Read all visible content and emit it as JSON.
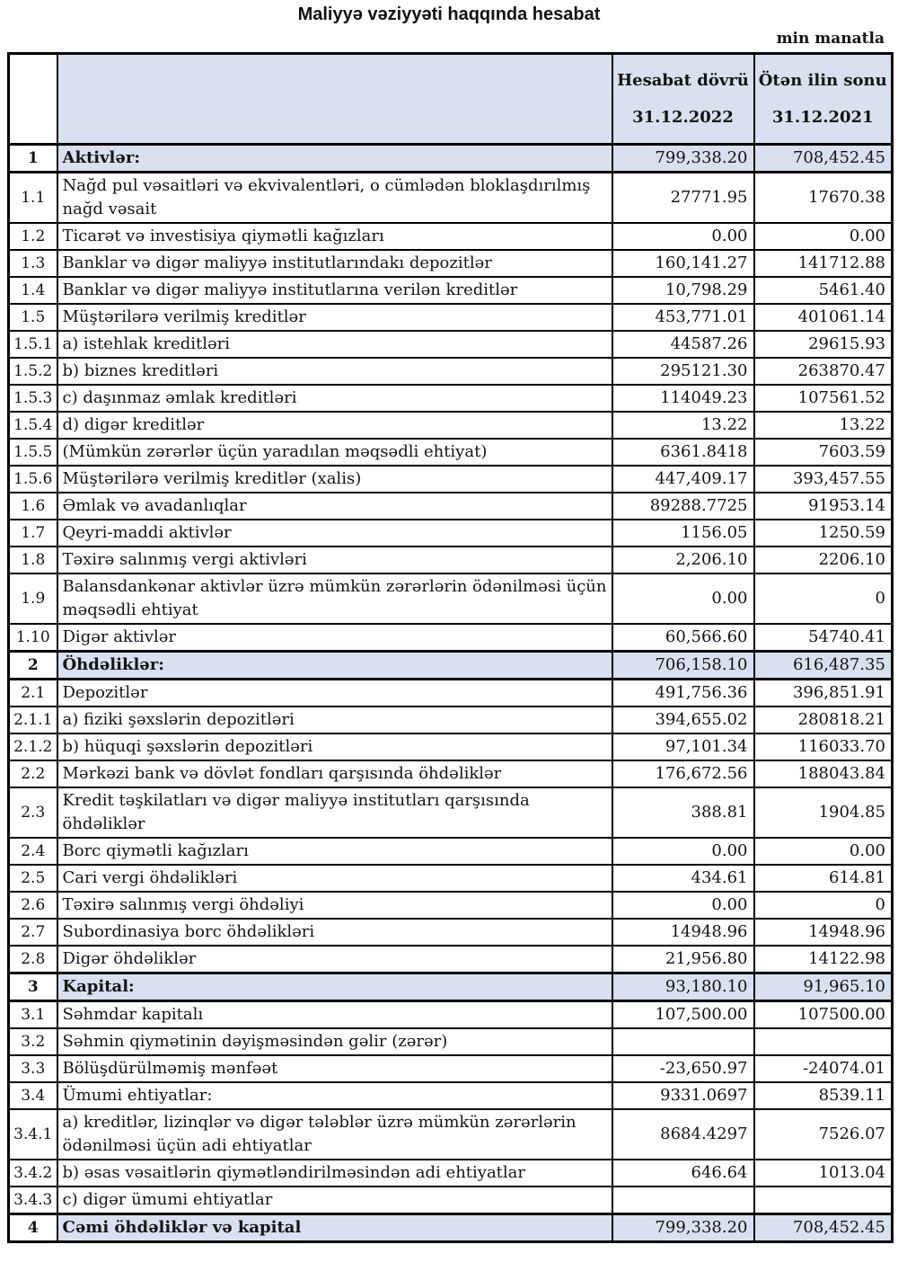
{
  "page": {
    "title": "Maliyyə vəziyyəti haqqında hesabat",
    "unit_note": "min manatla"
  },
  "colors": {
    "highlight_fill": "#d9e0ef",
    "border": "#000000",
    "text": "#141414"
  },
  "table": {
    "headers": {
      "number_col": "",
      "description_col": "",
      "current_period": {
        "line1": "Hesabat dövrü",
        "line2": "31.12.2022"
      },
      "prior_period": {
        "line1": "Ötən ilin sonu",
        "line2": "31.12.2021"
      }
    },
    "rows": [
      {
        "num": "1",
        "label": "Aktivlər:",
        "current": "799,338.20",
        "prior": "708,452.45",
        "section": true
      },
      {
        "num": "1.1",
        "label": "Nağd pul vəsaitləri və ekvivalentləri, o cümlədən bloklaşdırılmış nağd vəsait",
        "current": "27771.95",
        "prior": "17670.38",
        "section": false
      },
      {
        "num": "1.2",
        "label": "Ticarət və investisiya qiymətli kağızları",
        "current": "0.00",
        "prior": "0.00",
        "section": false
      },
      {
        "num": "1.3",
        "label": "Banklar və digər maliyyə institutlarındakı depozitlər",
        "current": "160,141.27",
        "prior": "141712.88",
        "section": false
      },
      {
        "num": "1.4",
        "label": "Banklar və digər maliyyə institutlarına verilən kreditlər",
        "current": "10,798.29",
        "prior": "5461.40",
        "section": false
      },
      {
        "num": "1.5",
        "label": "Müştərilərə verilmiş kreditlər",
        "current": "453,771.01",
        "prior": "401061.14",
        "section": false
      },
      {
        "num": "1.5.1",
        "label": "a) istehlak kreditləri",
        "current": "44587.26",
        "prior": "29615.93",
        "section": false
      },
      {
        "num": "1.5.2",
        "label": "b) biznes kreditləri",
        "current": "295121.30",
        "prior": "263870.47",
        "section": false
      },
      {
        "num": "1.5.3",
        "label": "c) daşınmaz əmlak kreditləri",
        "current": "114049.23",
        "prior": "107561.52",
        "section": false
      },
      {
        "num": "1.5.4",
        "label": "d) digər kreditlər",
        "current": "13.22",
        "prior": "13.22",
        "section": false
      },
      {
        "num": "1.5.5",
        "label": "(Mümkün zərərlər üçün yaradılan məqsədli ehtiyat)",
        "current": "6361.8418",
        "prior": "7603.59",
        "section": false
      },
      {
        "num": "1.5.6",
        "label": "Müştərilərə verilmiş kreditlər (xalis)",
        "current": "447,409.17",
        "prior": "393,457.55",
        "section": false
      },
      {
        "num": "1.6",
        "label": "Əmlak və avadanlıqlar",
        "current": "89288.7725",
        "prior": "91953.14",
        "section": false
      },
      {
        "num": "1.7",
        "label": "Qeyri-maddi aktivlər",
        "current": "1156.05",
        "prior": "1250.59",
        "section": false
      },
      {
        "num": "1.8",
        "label": "Təxirə salınmış vergi aktivləri",
        "current": "2,206.10",
        "prior": "2206.10",
        "section": false
      },
      {
        "num": "1.9",
        "label": "Balansdankənar aktivlər üzrə mümkün zərərlərin ödənilməsi üçün məqsədli ehtiyat",
        "current": "0.00",
        "prior": "0",
        "section": false
      },
      {
        "num": "1.10",
        "label": "Digər aktivlər",
        "current": "60,566.60",
        "prior": "54740.41",
        "section": false
      },
      {
        "num": "2",
        "label": "Öhdəliklər:",
        "current": "706,158.10",
        "prior": "616,487.35",
        "section": true
      },
      {
        "num": "2.1",
        "label": "Depozitlər",
        "current": "491,756.36",
        "prior": "396,851.91",
        "section": false
      },
      {
        "num": "2.1.1",
        "label": "a) fiziki şəxslərin depozitləri",
        "current": "394,655.02",
        "prior": "280818.21",
        "section": false
      },
      {
        "num": "2.1.2",
        "label": "b) hüquqi şəxslərin depozitləri",
        "current": "97,101.34",
        "prior": "116033.70",
        "section": false
      },
      {
        "num": "2.2",
        "label": "Mərkəzi bank və dövlət fondları qarşısında öhdəliklər",
        "current": "176,672.56",
        "prior": "188043.84",
        "section": false
      },
      {
        "num": "2.3",
        "label": "Kredit təşkilatları və digər maliyyə institutları qarşısında öhdəliklər",
        "current": "388.81",
        "prior": "1904.85",
        "section": false
      },
      {
        "num": "2.4",
        "label": "Borc qiymətli kağızları",
        "current": "0.00",
        "prior": "0.00",
        "section": false
      },
      {
        "num": "2.5",
        "label": "Cari vergi öhdəlikləri",
        "current": "434.61",
        "prior": "614.81",
        "section": false
      },
      {
        "num": "2.6",
        "label": "Təxirə salınmış vergi öhdəliyi",
        "current": "0.00",
        "prior": "0",
        "section": false
      },
      {
        "num": "2.7",
        "label": "Subordinasiya borc öhdəlikləri",
        "current": "14948.96",
        "prior": "14948.96",
        "section": false
      },
      {
        "num": "2.8",
        "label": "Digər öhdəliklər",
        "current": "21,956.80",
        "prior": "14122.98",
        "section": false
      },
      {
        "num": "3",
        "label": "Kapital:",
        "current": "93,180.10",
        "prior": "91,965.10",
        "section": true
      },
      {
        "num": "3.1",
        "label": "Səhmdar kapitalı",
        "current": "107,500.00",
        "prior": "107500.00",
        "section": false
      },
      {
        "num": "3.2",
        "label": "Səhmin qiymətinin dəyişməsindən gəlir (zərər)",
        "current": "",
        "prior": "",
        "section": false
      },
      {
        "num": "3.3",
        "label": "Bölüşdürülməmiş mənfəət",
        "current": "-23,650.97",
        "prior": "-24074.01",
        "section": false
      },
      {
        "num": "3.4",
        "label": "Ümumi ehtiyatlar:",
        "current": "9331.0697",
        "prior": "8539.11",
        "section": false
      },
      {
        "num": "3.4.1",
        "label": "a) kreditlər, lizinqlər və digər tələblər üzrə mümkün zərərlərin ödənilməsi üçün adi ehtiyatlar",
        "current": "8684.4297",
        "prior": "7526.07",
        "section": false
      },
      {
        "num": "3.4.2",
        "label": "b) əsas vəsaitlərin qiymətləndirilməsindən adi ehtiyatlar",
        "current": "646.64",
        "prior": "1013.04",
        "section": false
      },
      {
        "num": "3.4.3",
        "label": "c) digər ümumi ehtiyatlar",
        "current": "",
        "prior": "",
        "section": false
      },
      {
        "num": "4",
        "label": "Cəmi öhdəliklər və kapital",
        "current": "799,338.20",
        "prior": "708,452.45",
        "section": true
      }
    ]
  }
}
